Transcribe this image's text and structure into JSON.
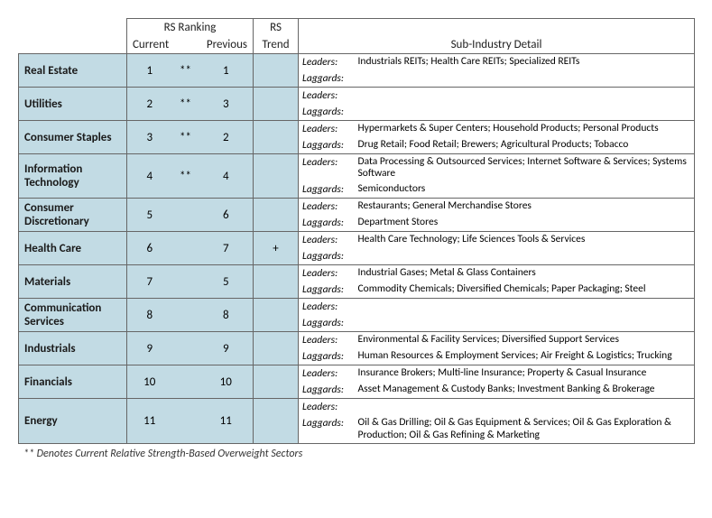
{
  "header": {
    "rs_ranking": "RS Ranking",
    "current": "Current",
    "previous": "Previous",
    "rs": "RS",
    "trend": "Trend",
    "sub_industry_detail": "Sub-Industry Detail"
  },
  "colors": {
    "band": "#c2dbe4",
    "border": "#666666",
    "text": "#1a1a1a",
    "background": "#ffffff"
  },
  "leaders_label": "Leaders:",
  "laggards_label": "Laggards:",
  "footnote": "** Denotes Current Relative Strength-Based Overweight Sectors",
  "rows": [
    {
      "sector": "Real Estate",
      "current": "1",
      "mark": "**",
      "previous": "1",
      "trend": "",
      "leaders": "Industrials REITs; Health Care REITs; Specialized REITs",
      "laggards": ""
    },
    {
      "sector": "Utilities",
      "current": "2",
      "mark": "**",
      "previous": "3",
      "trend": "",
      "leaders": "",
      "laggards": ""
    },
    {
      "sector": "Consumer Staples",
      "current": "3",
      "mark": "**",
      "previous": "2",
      "trend": "",
      "leaders": "Hypermarkets & Super Centers; Household Products; Personal Products",
      "laggards": "Drug Retail; Food Retail; Brewers; Agricultural Products; Tobacco"
    },
    {
      "sector": "Information Technology",
      "current": "4",
      "mark": "**",
      "previous": "4",
      "trend": "",
      "leaders": "Data Processing & Outsourced Services; Internet Software & Services; Systems Software",
      "laggards": "Semiconductors"
    },
    {
      "sector": "Consumer Discretionary",
      "current": "5",
      "mark": "",
      "previous": "6",
      "trend": "",
      "leaders": "Restaurants; General Merchandise Stores",
      "laggards": "Department Stores"
    },
    {
      "sector": "Health Care",
      "current": "6",
      "mark": "",
      "previous": "7",
      "trend": "+",
      "leaders": "Health Care Technology; Life Sciences Tools & Services",
      "laggards": ""
    },
    {
      "sector": "Materials",
      "current": "7",
      "mark": "",
      "previous": "5",
      "trend": "",
      "leaders": "Industrial Gases; Metal & Glass Containers",
      "laggards": "Commodity Chemicals; Diversified Chemicals; Paper Packaging; Steel"
    },
    {
      "sector": "Communication Services",
      "current": "8",
      "mark": "",
      "previous": "8",
      "trend": "",
      "leaders": "",
      "laggards": ""
    },
    {
      "sector": "Industrials",
      "current": "9",
      "mark": "",
      "previous": "9",
      "trend": "",
      "leaders": "Environmental & Facility Services; Diversified Support Services",
      "laggards": "Human Resources & Employment Services; Air Freight & Logistics; Trucking"
    },
    {
      "sector": "Financials",
      "current": "10",
      "mark": "",
      "previous": "10",
      "trend": "",
      "leaders": "Insurance Brokers; Multi-line Insurance; Property & Casual Insurance",
      "laggards": "Asset Management & Custody Banks; Investment Banking & Brokerage"
    },
    {
      "sector": "Energy",
      "current": "11",
      "mark": "",
      "previous": "11",
      "trend": "",
      "leaders": "",
      "laggards": "Oil & Gas Drilling; Oil & Gas Equipment & Services; Oil & Gas Exploration & Production; Oil & Gas Refining & Marketing"
    }
  ]
}
